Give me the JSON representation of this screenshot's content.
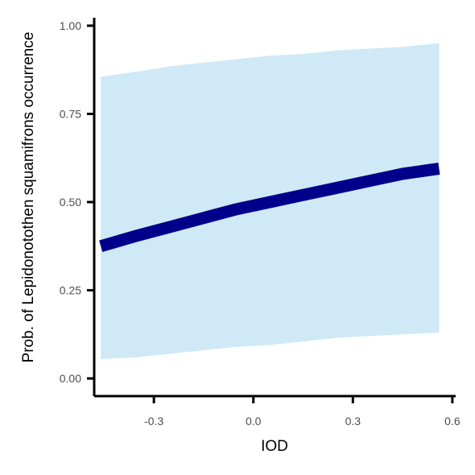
{
  "chart_data": {
    "type": "line",
    "xlabel": "IOD",
    "ylabel": "Prob. of  Lepidonotothen squamifrons  occurrence",
    "xlim": [
      -0.48,
      0.61
    ],
    "ylim": [
      -0.05,
      1.05
    ],
    "x_ticks": [
      -0.3,
      0.0,
      0.3,
      0.6
    ],
    "x_tick_labels": [
      "-0.3",
      "0.0",
      "0.3",
      "0.6"
    ],
    "y_ticks": [
      0.0,
      0.25,
      0.5,
      0.75,
      1.0
    ],
    "y_tick_labels": [
      "0.00",
      "0.25",
      "0.50",
      "0.75",
      "1.00"
    ],
    "grid": false,
    "series": [
      {
        "x": [
          -0.46,
          -0.35,
          -0.25,
          -0.15,
          -0.05,
          0.05,
          0.15,
          0.25,
          0.35,
          0.45,
          0.56
        ],
        "y": [
          0.375,
          0.405,
          0.43,
          0.455,
          0.48,
          0.5,
          0.52,
          0.54,
          0.56,
          0.58,
          0.595
        ],
        "lower": [
          0.055,
          0.06,
          0.07,
          0.08,
          0.09,
          0.095,
          0.105,
          0.115,
          0.12,
          0.125,
          0.13
        ],
        "upper": [
          0.855,
          0.87,
          0.885,
          0.895,
          0.905,
          0.915,
          0.92,
          0.93,
          0.935,
          0.94,
          0.95
        ]
      }
    ],
    "colors": {
      "line": "#00008b",
      "ribbon": "#cfe9f6",
      "axis": "#000000",
      "tick_text": "#4d4d4d"
    }
  }
}
